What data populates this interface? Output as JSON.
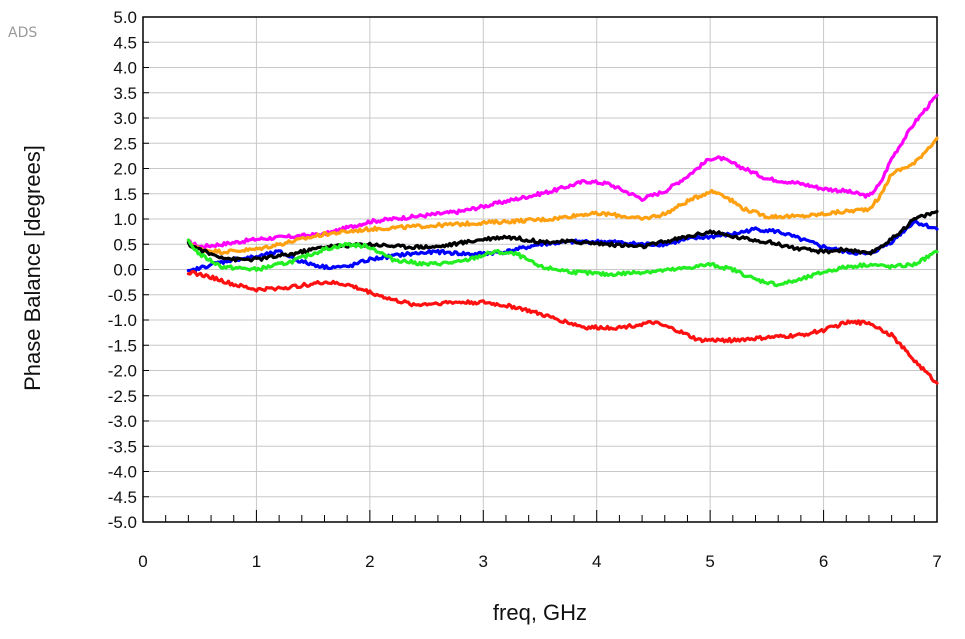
{
  "watermark": "ADS",
  "chart_data": {
    "type": "line",
    "title": "",
    "xlabel": "freq, GHz",
    "ylabel": "Phase Balance [degrees]",
    "xlim": [
      0,
      7
    ],
    "ylim": [
      -5.0,
      5.0
    ],
    "x_ticks": [
      "0",
      "1",
      "2",
      "3",
      "4",
      "5",
      "6",
      "7"
    ],
    "y_ticks": [
      "5.0",
      "4.5",
      "4.0",
      "3.5",
      "3.0",
      "2.5",
      "2.0",
      "1.5",
      "1.0",
      "0.5",
      "0.0",
      "-0.5",
      "-1.0",
      "-1.5",
      "-2.0",
      "-2.5",
      "-3.0",
      "-3.5",
      "-4.0",
      "-4.5",
      "-5.0"
    ],
    "grid": true,
    "legend": "none",
    "series": [
      {
        "color": "#ff00ff",
        "points": [
          [
            0.4,
            0.55
          ],
          [
            0.5,
            0.45
          ],
          [
            0.7,
            0.5
          ],
          [
            1.0,
            0.6
          ],
          [
            1.3,
            0.65
          ],
          [
            1.6,
            0.7
          ],
          [
            2.0,
            0.95
          ],
          [
            2.4,
            1.05
          ],
          [
            2.8,
            1.15
          ],
          [
            3.2,
            1.35
          ],
          [
            3.6,
            1.55
          ],
          [
            3.9,
            1.75
          ],
          [
            4.1,
            1.7
          ],
          [
            4.3,
            1.5
          ],
          [
            4.4,
            1.4
          ],
          [
            4.6,
            1.55
          ],
          [
            4.8,
            1.85
          ],
          [
            5.0,
            2.2
          ],
          [
            5.1,
            2.2
          ],
          [
            5.3,
            2.0
          ],
          [
            5.5,
            1.8
          ],
          [
            5.8,
            1.7
          ],
          [
            6.0,
            1.6
          ],
          [
            6.2,
            1.55
          ],
          [
            6.4,
            1.45
          ],
          [
            6.5,
            1.7
          ],
          [
            6.6,
            2.2
          ],
          [
            6.8,
            2.9
          ],
          [
            7.0,
            3.45
          ]
        ]
      },
      {
        "color": "#ffa010",
        "points": [
          [
            0.4,
            0.55
          ],
          [
            0.5,
            0.4
          ],
          [
            0.7,
            0.35
          ],
          [
            1.0,
            0.4
          ],
          [
            1.3,
            0.55
          ],
          [
            1.6,
            0.7
          ],
          [
            2.0,
            0.8
          ],
          [
            2.4,
            0.85
          ],
          [
            2.8,
            0.9
          ],
          [
            3.2,
            0.95
          ],
          [
            3.6,
            1.0
          ],
          [
            3.9,
            1.1
          ],
          [
            4.1,
            1.1
          ],
          [
            4.4,
            1.0
          ],
          [
            4.6,
            1.1
          ],
          [
            4.8,
            1.35
          ],
          [
            5.0,
            1.55
          ],
          [
            5.1,
            1.5
          ],
          [
            5.3,
            1.2
          ],
          [
            5.5,
            1.05
          ],
          [
            5.8,
            1.05
          ],
          [
            6.0,
            1.1
          ],
          [
            6.2,
            1.15
          ],
          [
            6.4,
            1.2
          ],
          [
            6.5,
            1.45
          ],
          [
            6.6,
            1.9
          ],
          [
            6.8,
            2.1
          ],
          [
            7.0,
            2.6
          ]
        ]
      },
      {
        "color": "#0000ff",
        "points": [
          [
            0.4,
            -0.05
          ],
          [
            0.6,
            0.1
          ],
          [
            0.8,
            0.2
          ],
          [
            1.0,
            0.25
          ],
          [
            1.2,
            0.35
          ],
          [
            1.4,
            0.15
          ],
          [
            1.6,
            0.05
          ],
          [
            1.8,
            0.05
          ],
          [
            2.0,
            0.2
          ],
          [
            2.3,
            0.3
          ],
          [
            2.6,
            0.35
          ],
          [
            2.9,
            0.3
          ],
          [
            3.2,
            0.35
          ],
          [
            3.5,
            0.5
          ],
          [
            3.8,
            0.55
          ],
          [
            4.1,
            0.55
          ],
          [
            4.4,
            0.5
          ],
          [
            4.6,
            0.5
          ],
          [
            4.8,
            0.6
          ],
          [
            5.0,
            0.65
          ],
          [
            5.2,
            0.7
          ],
          [
            5.4,
            0.8
          ],
          [
            5.6,
            0.75
          ],
          [
            5.8,
            0.6
          ],
          [
            6.0,
            0.45
          ],
          [
            6.2,
            0.35
          ],
          [
            6.4,
            0.3
          ],
          [
            6.6,
            0.55
          ],
          [
            6.8,
            0.95
          ],
          [
            7.0,
            0.8
          ]
        ]
      },
      {
        "color": "#000000",
        "points": [
          [
            0.4,
            0.5
          ],
          [
            0.6,
            0.3
          ],
          [
            0.8,
            0.2
          ],
          [
            1.0,
            0.2
          ],
          [
            1.3,
            0.3
          ],
          [
            1.6,
            0.45
          ],
          [
            2.0,
            0.5
          ],
          [
            2.3,
            0.45
          ],
          [
            2.6,
            0.45
          ],
          [
            3.0,
            0.6
          ],
          [
            3.2,
            0.65
          ],
          [
            3.5,
            0.55
          ],
          [
            3.8,
            0.55
          ],
          [
            4.1,
            0.5
          ],
          [
            4.4,
            0.45
          ],
          [
            4.6,
            0.55
          ],
          [
            4.8,
            0.65
          ],
          [
            5.0,
            0.75
          ],
          [
            5.2,
            0.65
          ],
          [
            5.5,
            0.55
          ],
          [
            5.8,
            0.4
          ],
          [
            6.0,
            0.35
          ],
          [
            6.2,
            0.4
          ],
          [
            6.4,
            0.3
          ],
          [
            6.6,
            0.6
          ],
          [
            6.8,
            1.0
          ],
          [
            7.0,
            1.15
          ]
        ]
      },
      {
        "color": "#22ee22",
        "points": [
          [
            0.4,
            0.55
          ],
          [
            0.5,
            0.3
          ],
          [
            0.7,
            0.05
          ],
          [
            1.0,
            0.0
          ],
          [
            1.3,
            0.15
          ],
          [
            1.6,
            0.4
          ],
          [
            1.8,
            0.5
          ],
          [
            2.0,
            0.45
          ],
          [
            2.2,
            0.2
          ],
          [
            2.5,
            0.1
          ],
          [
            2.8,
            0.15
          ],
          [
            3.1,
            0.35
          ],
          [
            3.3,
            0.3
          ],
          [
            3.5,
            0.05
          ],
          [
            3.8,
            -0.05
          ],
          [
            4.1,
            -0.1
          ],
          [
            4.4,
            -0.05
          ],
          [
            4.7,
            0.0
          ],
          [
            5.0,
            0.1
          ],
          [
            5.2,
            0.0
          ],
          [
            5.4,
            -0.2
          ],
          [
            5.6,
            -0.3
          ],
          [
            5.8,
            -0.2
          ],
          [
            6.0,
            -0.05
          ],
          [
            6.2,
            0.05
          ],
          [
            6.4,
            0.1
          ],
          [
            6.6,
            0.05
          ],
          [
            6.8,
            0.1
          ],
          [
            7.0,
            0.35
          ]
        ]
      },
      {
        "color": "#ff1010",
        "points": [
          [
            0.4,
            -0.05
          ],
          [
            0.6,
            -0.15
          ],
          [
            0.8,
            -0.3
          ],
          [
            1.0,
            -0.4
          ],
          [
            1.3,
            -0.35
          ],
          [
            1.6,
            -0.25
          ],
          [
            1.8,
            -0.3
          ],
          [
            2.0,
            -0.45
          ],
          [
            2.2,
            -0.6
          ],
          [
            2.4,
            -0.7
          ],
          [
            2.7,
            -0.65
          ],
          [
            3.0,
            -0.65
          ],
          [
            3.3,
            -0.75
          ],
          [
            3.6,
            -0.95
          ],
          [
            3.9,
            -1.15
          ],
          [
            4.2,
            -1.15
          ],
          [
            4.5,
            -1.05
          ],
          [
            4.7,
            -1.2
          ],
          [
            4.9,
            -1.4
          ],
          [
            5.2,
            -1.4
          ],
          [
            5.5,
            -1.35
          ],
          [
            5.8,
            -1.3
          ],
          [
            6.0,
            -1.2
          ],
          [
            6.2,
            -1.05
          ],
          [
            6.4,
            -1.05
          ],
          [
            6.6,
            -1.3
          ],
          [
            6.8,
            -1.8
          ],
          [
            7.0,
            -2.25
          ]
        ]
      }
    ]
  }
}
